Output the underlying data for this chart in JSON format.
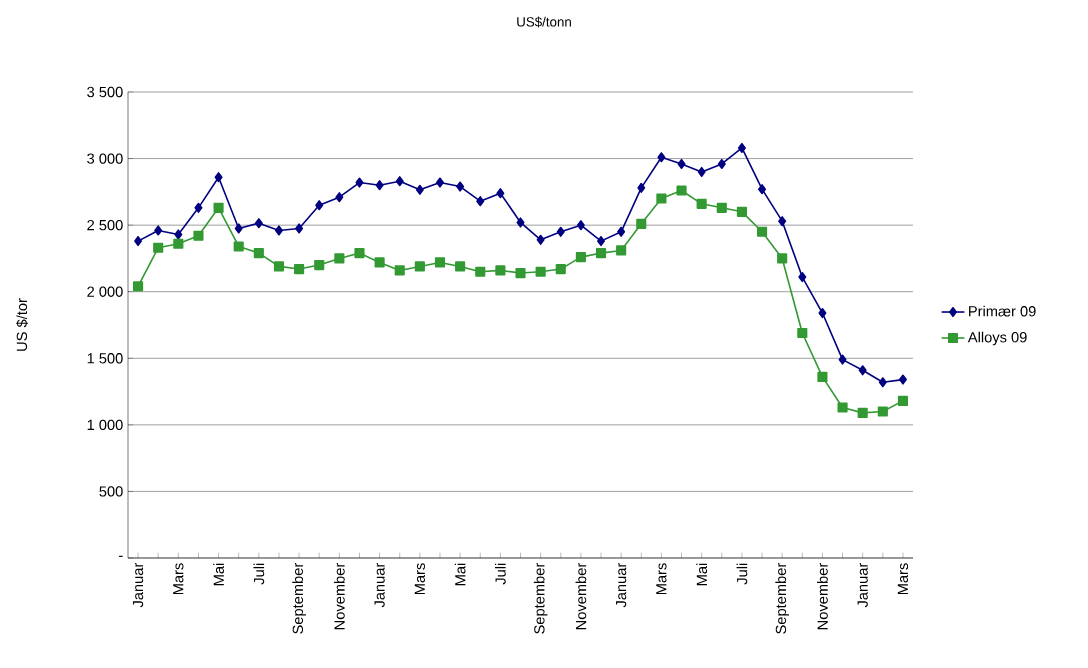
{
  "chart_data": {
    "type": "line",
    "title": "US$/tonn",
    "ylabel": "US $/tor",
    "categories": [
      "Januar",
      null,
      "Mars",
      null,
      "Mai",
      null,
      "Juli",
      null,
      "September",
      null,
      "November",
      null,
      "Januar",
      null,
      "Mars",
      null,
      "Mai",
      null,
      "Juli",
      null,
      "September",
      null,
      "November",
      null,
      "Januar",
      null,
      "Mars",
      null,
      "Mai",
      null,
      "Juli",
      null,
      "September",
      null,
      "November",
      null,
      "Januar",
      null,
      "Mars"
    ],
    "series": [
      {
        "name": "Primær 09",
        "color": "#000080",
        "marker": "diamond",
        "values": [
          2380,
          2460,
          2430,
          2630,
          2860,
          2475,
          2515,
          2460,
          2475,
          2650,
          2710,
          2820,
          2800,
          2830,
          2765,
          2820,
          2790,
          2680,
          2740,
          2520,
          2390,
          2450,
          2500,
          2380,
          2450,
          2780,
          3010,
          2960,
          2900,
          2960,
          3080,
          2770,
          2530,
          2110,
          1840,
          1490,
          1410,
          1320,
          1340
        ]
      },
      {
        "name": "Alloys 09",
        "color": "#339933",
        "marker": "square",
        "values": [
          2040,
          2330,
          2360,
          2420,
          2630,
          2340,
          2290,
          2190,
          2170,
          2200,
          2250,
          2290,
          2220,
          2160,
          2190,
          2220,
          2190,
          2150,
          2160,
          2140,
          2150,
          2170,
          2260,
          2290,
          2310,
          2510,
          2700,
          2760,
          2660,
          2630,
          2600,
          2450,
          2250,
          1690,
          1360,
          1130,
          1090,
          1100,
          1180
        ]
      }
    ],
    "ylim": [
      0,
      3500
    ],
    "yticks": [
      {
        "value": 0,
        "label": "-"
      },
      {
        "value": 500,
        "label": "500"
      },
      {
        "value": 1000,
        "label": "1 000"
      },
      {
        "value": 1500,
        "label": "1 500"
      },
      {
        "value": 2000,
        "label": "2 000"
      },
      {
        "value": 2500,
        "label": "2 500"
      },
      {
        "value": 3000,
        "label": "3 000"
      },
      {
        "value": 3500,
        "label": "3 500"
      }
    ],
    "grid": "y",
    "legend": "right",
    "line_style": "solid"
  }
}
